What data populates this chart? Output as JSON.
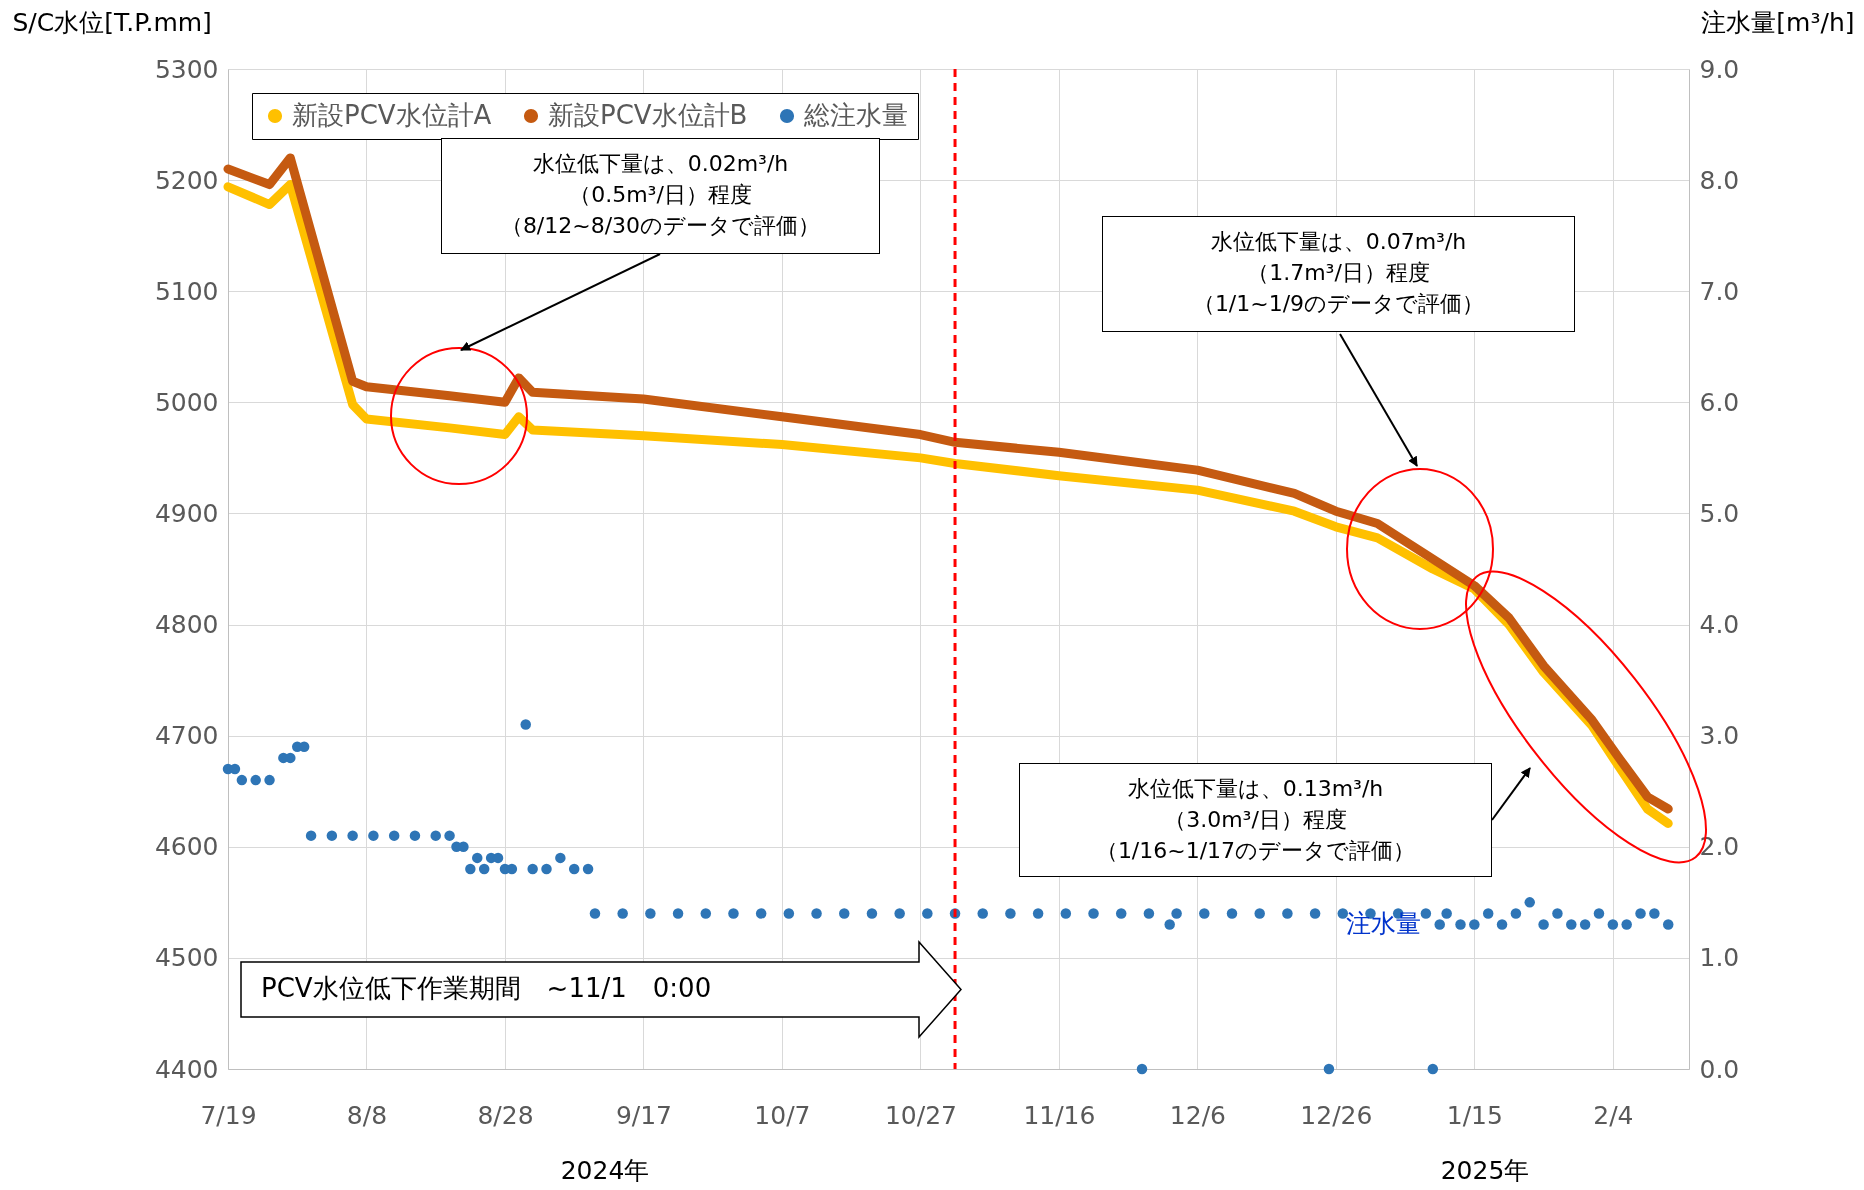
{
  "chart_data": {
    "type": "line",
    "ylabel": "S/C水位[T.P.mm]",
    "y2label": "注水量[m³/h]",
    "x": [
      "2024-07-19",
      "2024-07-25",
      "2024-07-28",
      "2024-08-06",
      "2024-08-08",
      "2024-08-20",
      "2024-08-28",
      "2024-08-30",
      "2024-09-01",
      "2024-09-17",
      "2024-10-07",
      "2024-10-27",
      "2024-11-01",
      "2024-11-16",
      "2024-12-06",
      "2024-12-20",
      "2024-12-26",
      "2025-01-01",
      "2025-01-09",
      "2025-01-15",
      "2025-01-20",
      "2025-01-25",
      "2025-02-01",
      "2025-02-05",
      "2025-02-09",
      "2025-02-12"
    ],
    "xlim": [
      "2024-07-19",
      "2025-02-15"
    ],
    "xticks": [
      {
        "value": "2024-07-19",
        "label": "7/19"
      },
      {
        "value": "2024-08-08",
        "label": "8/8"
      },
      {
        "value": "2024-08-28",
        "label": "8/28"
      },
      {
        "value": "2024-09-17",
        "label": "9/17"
      },
      {
        "value": "2024-10-07",
        "label": "10/7"
      },
      {
        "value": "2024-10-27",
        "label": "10/27"
      },
      {
        "value": "2024-11-16",
        "label": "11/16"
      },
      {
        "value": "2024-12-06",
        "label": "12/6"
      },
      {
        "value": "2024-12-26",
        "label": "12/26"
      },
      {
        "value": "2025-01-15",
        "label": "1/15"
      },
      {
        "value": "2025-02-04",
        "label": "2/4"
      }
    ],
    "ylim": [
      4400,
      5300
    ],
    "yticks": [
      4400,
      4500,
      4600,
      4700,
      4800,
      4900,
      5000,
      5100,
      5200,
      5300
    ],
    "y2lim": [
      0,
      9
    ],
    "y2ticks": [
      {
        "value": 0,
        "label": "0.0"
      },
      {
        "value": 1,
        "label": "1.0"
      },
      {
        "value": 2,
        "label": "2.0"
      },
      {
        "value": 3,
        "label": "3.0"
      },
      {
        "value": 4,
        "label": "4.0"
      },
      {
        "value": 5,
        "label": "5.0"
      },
      {
        "value": 6,
        "label": "6.0"
      },
      {
        "value": 7,
        "label": "7.0"
      },
      {
        "value": 8,
        "label": "8.0"
      },
      {
        "value": 9,
        "label": "9.0"
      }
    ],
    "grid": true,
    "legend": "top left",
    "series": [
      {
        "name": "新設PCV水位計A",
        "type": "line",
        "color": "#ffc000",
        "values": [
          5194,
          5178,
          5196,
          4998,
          4985,
          4977,
          4971,
          4987,
          4975,
          4970,
          4962,
          4950,
          4945,
          4934,
          4921,
          4902,
          4888,
          4878,
          4850,
          4832,
          4800,
          4757,
          4709,
          4671,
          4634,
          4621
        ]
      },
      {
        "name": "新設PCV水位計B",
        "type": "line",
        "color": "#c55a11",
        "values": [
          5210,
          5196,
          5220,
          5019,
          5014,
          5006,
          5000,
          5022,
          5009,
          5003,
          4987,
          4971,
          4964,
          4955,
          4939,
          4918,
          4902,
          4891,
          4859,
          4835,
          4806,
          4763,
          4714,
          4679,
          4645,
          4634
        ]
      },
      {
        "name": "総注水量",
        "type": "scatter",
        "axis": "y2",
        "marker": "circle",
        "color": "#2e75b6",
        "x": [
          "2024-07-19",
          "2024-07-20",
          "2024-07-21",
          "2024-07-23",
          "2024-07-25",
          "2024-07-27",
          "2024-07-28",
          "2024-07-29",
          "2024-07-30",
          "2024-07-31",
          "2024-08-03",
          "2024-08-06",
          "2024-08-09",
          "2024-08-12",
          "2024-08-15",
          "2024-08-18",
          "2024-08-20",
          "2024-08-21",
          "2024-08-22",
          "2024-08-23",
          "2024-08-24",
          "2024-08-25",
          "2024-08-26",
          "2024-08-27",
          "2024-08-28",
          "2024-08-29",
          "2024-08-31",
          "2024-09-01",
          "2024-09-03",
          "2024-09-05",
          "2024-09-07",
          "2024-09-09",
          "2024-09-10",
          "2024-09-14",
          "2024-09-18",
          "2024-09-22",
          "2024-09-26",
          "2024-09-30",
          "2024-10-04",
          "2024-10-08",
          "2024-10-12",
          "2024-10-16",
          "2024-10-20",
          "2024-10-24",
          "2024-10-28",
          "2024-11-01",
          "2024-11-05",
          "2024-11-09",
          "2024-11-13",
          "2024-11-17",
          "2024-11-21",
          "2024-11-25",
          "2024-11-28",
          "2024-11-29",
          "2024-12-02",
          "2024-12-03",
          "2024-12-07",
          "2024-12-11",
          "2024-12-15",
          "2024-12-19",
          "2024-12-23",
          "2024-12-25",
          "2024-12-27",
          "2024-12-31",
          "2025-01-04",
          "2025-01-08",
          "2025-01-09",
          "2025-01-10",
          "2025-01-11",
          "2025-01-13",
          "2025-01-15",
          "2025-01-17",
          "2025-01-19",
          "2025-01-21",
          "2025-01-23",
          "2025-01-25",
          "2025-01-27",
          "2025-01-29",
          "2025-01-31",
          "2025-02-02",
          "2025-02-04",
          "2025-02-06",
          "2025-02-08",
          "2025-02-10",
          "2025-02-12"
        ],
        "values": [
          2.7,
          2.7,
          2.6,
          2.6,
          2.6,
          2.8,
          2.8,
          2.9,
          2.9,
          2.1,
          2.1,
          2.1,
          2.1,
          2.1,
          2.1,
          2.1,
          2.1,
          2.0,
          2.0,
          1.8,
          1.9,
          1.8,
          1.9,
          1.9,
          1.8,
          1.8,
          3.1,
          1.8,
          1.8,
          1.9,
          1.8,
          1.8,
          1.4,
          1.4,
          1.4,
          1.4,
          1.4,
          1.4,
          1.4,
          1.4,
          1.4,
          1.4,
          1.4,
          1.4,
          1.4,
          1.4,
          1.4,
          1.4,
          1.4,
          1.4,
          1.4,
          1.4,
          0.0,
          1.4,
          1.3,
          1.4,
          1.4,
          1.4,
          1.4,
          1.4,
          1.4,
          0.0,
          1.4,
          1.4,
          1.4,
          1.4,
          0.0,
          1.3,
          1.4,
          1.3,
          1.3,
          1.4,
          1.3,
          1.4,
          1.5,
          1.3,
          1.4,
          1.3,
          1.3,
          1.4,
          1.3,
          1.3,
          1.4,
          1.4,
          1.3
        ]
      }
    ],
    "ref_lines": [
      {
        "axis": "x",
        "value": "2024-11-01",
        "color": "#ff0000",
        "line_style": "dashed"
      }
    ],
    "annotations": [
      "水位低下量は、0.02m³/h",
      "（0.5m³/日）程度",
      "（8/12~8/30のデータで評価）",
      "水位低下量は、0.07m³/h",
      "（1.7m³/日）程度",
      "（1/1~1/9のデータで評価）",
      "水位低下量は、0.13m³/h",
      "（3.0m³/日）程度",
      "（1/16~1/17のデータで評価）",
      "PCV水位低下作業期間　~11/1　0:00",
      "注水量",
      "2024年",
      "2025年"
    ]
  }
}
